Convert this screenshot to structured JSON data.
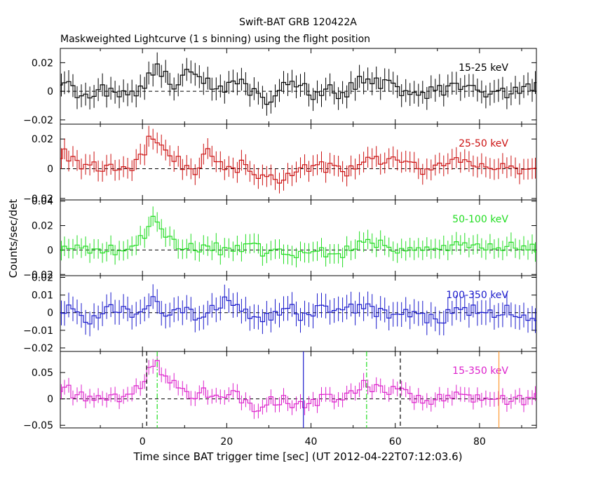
{
  "title_line1": "Swift-BAT GRB 120422A",
  "title_line2": "Maskweighted Lightcurve (1 s binning) using the flight position",
  "xlabel": "Time since BAT trigger time [sec] (UT 2012-04-22T07:12:03.6)",
  "ylabel": "Counts/sec/det",
  "chart_data": {
    "type": "line",
    "xlim": [
      -19.5,
      93.5
    ],
    "x_ticks": [
      0,
      20,
      40,
      60,
      80
    ],
    "shared_x": true,
    "panels": [
      {
        "name": "15-25 keV",
        "color": "#000000",
        "ylim": [
          -0.023,
          0.03
        ],
        "y_ticks": [
          0.02,
          0,
          -0.02
        ],
        "y_tick_labels": [
          "0.02",
          "0",
          "−0.02"
        ],
        "keyframes": [
          [
            -19,
            0.008
          ],
          [
            -15,
            -0.004
          ],
          [
            -10,
            0.001
          ],
          [
            -5,
            -0.002
          ],
          [
            -1,
            0.0
          ],
          [
            0.5,
            0.006
          ],
          [
            2,
            0.014
          ],
          [
            3,
            0.016
          ],
          [
            5,
            0.012
          ],
          [
            7,
            0.004
          ],
          [
            10,
            0.01
          ],
          [
            12,
            0.018
          ],
          [
            14,
            0.008
          ],
          [
            18,
            0.002
          ],
          [
            22,
            0.006
          ],
          [
            24,
            0.004
          ],
          [
            27,
            -0.002
          ],
          [
            30,
            -0.006
          ],
          [
            34,
            0.004
          ],
          [
            38,
            0.008
          ],
          [
            40,
            -0.004
          ],
          [
            44,
            0.004
          ],
          [
            47,
            -0.006
          ],
          [
            50,
            0.004
          ],
          [
            53,
            0.01
          ],
          [
            56,
            0.006
          ],
          [
            60,
            0.004
          ],
          [
            62,
            0.0
          ],
          [
            66,
            -0.002
          ],
          [
            70,
            0.0
          ],
          [
            74,
            0.002
          ],
          [
            80,
            0.0
          ],
          [
            86,
            -0.002
          ],
          [
            90,
            0.0
          ],
          [
            93,
            0.004
          ]
        ],
        "error": 0.008
      },
      {
        "name": "25-50 keV",
        "color": "#cc1111",
        "ylim": [
          -0.021,
          0.03
        ],
        "y_ticks": [
          0.02,
          0,
          -0.02
        ],
        "y_tick_labels": [
          "0.02",
          "0",
          "−0.02"
        ],
        "keyframes": [
          [
            -19,
            0.01
          ],
          [
            -16,
            0.006
          ],
          [
            -13,
            0.0
          ],
          [
            -10,
            0.002
          ],
          [
            -5,
            -0.001
          ],
          [
            -1,
            0.004
          ],
          [
            0,
            0.01
          ],
          [
            1,
            0.016
          ],
          [
            2,
            0.022
          ],
          [
            3,
            0.02
          ],
          [
            5,
            0.018
          ],
          [
            7,
            0.01
          ],
          [
            10,
            0.002
          ],
          [
            14,
            -0.002
          ],
          [
            15,
            0.014
          ],
          [
            17,
            0.004
          ],
          [
            20,
            0.0
          ],
          [
            24,
            0.002
          ],
          [
            28,
            -0.006
          ],
          [
            32,
            -0.008
          ],
          [
            36,
            0.0
          ],
          [
            40,
            0.002
          ],
          [
            44,
            0.0
          ],
          [
            48,
            -0.002
          ],
          [
            52,
            0.006
          ],
          [
            55,
            0.008
          ],
          [
            58,
            0.006
          ],
          [
            62,
            0.002
          ],
          [
            66,
            0.0
          ],
          [
            70,
            0.002
          ],
          [
            74,
            0.004
          ],
          [
            80,
            0.004
          ],
          [
            86,
            0.002
          ],
          [
            90,
            -0.002
          ],
          [
            93,
            0.0
          ]
        ],
        "error": 0.007
      },
      {
        "name": "50-100 keV",
        "color": "#22dd22",
        "ylim": [
          -0.021,
          0.041
        ],
        "y_ticks": [
          0.04,
          0.02,
          0,
          -0.02
        ],
        "y_tick_labels": [
          "0.04",
          "0.02",
          "0",
          "−0.02"
        ],
        "keyframes": [
          [
            -19,
            0.003
          ],
          [
            -15,
            0.0
          ],
          [
            -12,
            -0.002
          ],
          [
            -8,
            0.002
          ],
          [
            -5,
            -0.004
          ],
          [
            -3,
            0.002
          ],
          [
            -1,
            0.004
          ],
          [
            0,
            0.01
          ],
          [
            1,
            0.018
          ],
          [
            2,
            0.03
          ],
          [
            3,
            0.022
          ],
          [
            4,
            0.024
          ],
          [
            6,
            0.01
          ],
          [
            8,
            0.002
          ],
          [
            12,
            0.004
          ],
          [
            16,
            0.002
          ],
          [
            20,
            0.0
          ],
          [
            24,
            0.004
          ],
          [
            28,
            0.0
          ],
          [
            32,
            -0.002
          ],
          [
            36,
            -0.004
          ],
          [
            40,
            -0.006
          ],
          [
            44,
            0.0
          ],
          [
            48,
            -0.002
          ],
          [
            52,
            0.008
          ],
          [
            55,
            0.004
          ],
          [
            60,
            0.002
          ],
          [
            64,
            0.002
          ],
          [
            68,
            0.0
          ],
          [
            72,
            0.002
          ],
          [
            78,
            0.004
          ],
          [
            84,
            0.0
          ],
          [
            90,
            0.004
          ],
          [
            93,
            0.0
          ]
        ],
        "error": 0.008
      },
      {
        "name": "100-350 keV",
        "color": "#1a1acc",
        "ylim": [
          -0.022,
          0.021
        ],
        "y_ticks": [
          0.02,
          0.01,
          0,
          -0.01,
          -0.02
        ],
        "y_tick_labels": [
          "0.02",
          "0.01",
          "0",
          "−0.01",
          "−0.02"
        ],
        "keyframes": [
          [
            -19,
            0.002
          ],
          [
            -16,
            0.004
          ],
          [
            -13,
            -0.004
          ],
          [
            -10,
            0.0
          ],
          [
            -6,
            0.004
          ],
          [
            -2,
            0.0
          ],
          [
            1,
            0.006
          ],
          [
            3,
            0.006
          ],
          [
            6,
            -0.002
          ],
          [
            10,
            0.0
          ],
          [
            14,
            -0.002
          ],
          [
            18,
            0.004
          ],
          [
            22,
            0.008
          ],
          [
            25,
            0.0
          ],
          [
            28,
            -0.004
          ],
          [
            32,
            -0.002
          ],
          [
            35,
            0.004
          ],
          [
            38,
            -0.004
          ],
          [
            42,
            0.002
          ],
          [
            46,
            0.0
          ],
          [
            50,
            0.002
          ],
          [
            54,
            0.002
          ],
          [
            58,
            -0.002
          ],
          [
            62,
            0.002
          ],
          [
            66,
            -0.002
          ],
          [
            70,
            -0.004
          ],
          [
            74,
            0.0
          ],
          [
            78,
            0.002
          ],
          [
            82,
            0.0
          ],
          [
            86,
            0.002
          ],
          [
            90,
            0.0
          ],
          [
            93,
            -0.002
          ]
        ],
        "error": 0.007
      },
      {
        "name": "15-350 keV",
        "color": "#dd22cc",
        "ylim": [
          -0.055,
          0.09
        ],
        "y_ticks": [
          0.05,
          0,
          -0.05
        ],
        "y_tick_labels": [
          "0.05",
          "0",
          "−0.05"
        ],
        "keyframes": [
          [
            -19,
            0.02
          ],
          [
            -16,
            0.01
          ],
          [
            -13,
            0.0
          ],
          [
            -10,
            0.002
          ],
          [
            -5,
            0.0
          ],
          [
            -2,
            0.01
          ],
          [
            0,
            0.03
          ],
          [
            1,
            0.055
          ],
          [
            2,
            0.07
          ],
          [
            3,
            0.065
          ],
          [
            5,
            0.05
          ],
          [
            7,
            0.03
          ],
          [
            10,
            0.01
          ],
          [
            14,
            0.01
          ],
          [
            18,
            0.005
          ],
          [
            22,
            0.01
          ],
          [
            26,
            -0.01
          ],
          [
            28,
            -0.02
          ],
          [
            32,
            0.0
          ],
          [
            36,
            -0.01
          ],
          [
            40,
            -0.005
          ],
          [
            44,
            0.005
          ],
          [
            48,
            0.005
          ],
          [
            51,
            0.02
          ],
          [
            53,
            0.035
          ],
          [
            56,
            0.015
          ],
          [
            60,
            0.02
          ],
          [
            62,
            0.01
          ],
          [
            66,
            0.0
          ],
          [
            70,
            -0.002
          ],
          [
            74,
            0.005
          ],
          [
            80,
            0.0
          ],
          [
            86,
            0.0
          ],
          [
            90,
            -0.005
          ],
          [
            93,
            0.0
          ]
        ],
        "error": 0.014,
        "markers": [
          {
            "x": 1.0,
            "color": "#000000",
            "style": "dash"
          },
          {
            "x": 3.5,
            "color": "#22dd22",
            "style": "dashdot"
          },
          {
            "x": 38.2,
            "color": "#1a1acc",
            "style": "solid"
          },
          {
            "x": 53.2,
            "color": "#22dd22",
            "style": "dashdot"
          },
          {
            "x": 61.2,
            "color": "#000000",
            "style": "dash"
          },
          {
            "x": 84.6,
            "color": "#ff9933",
            "style": "solid"
          }
        ]
      }
    ]
  }
}
